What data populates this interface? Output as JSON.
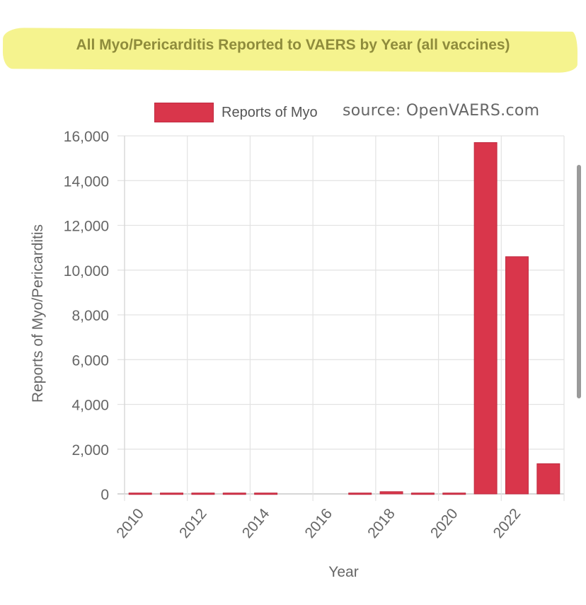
{
  "header": {
    "title": "All Myo/Pericarditis Reported to VAERS by Year (all vaccines)",
    "source": "source: OpenVAERS.com"
  },
  "colors": {
    "bar": "#d9364b",
    "highlight": "#f3f17a",
    "title_text": "#8f8c3c"
  },
  "chart_data": {
    "type": "bar",
    "title": "All Myo/Pericarditis Reported to VAERS by Year (all vaccines)",
    "xlabel": "Year",
    "ylabel": "Reports of Myo/Pericarditis",
    "legend": {
      "label": "Reports of Myo",
      "placement": "top"
    },
    "categories": [
      "2010",
      "2011",
      "2012",
      "2013",
      "2014",
      "2015",
      "2016",
      "2017",
      "2018",
      "2019",
      "2020",
      "2021",
      "2022",
      "2023"
    ],
    "x_tick_labels": [
      "2010",
      "2012",
      "2014",
      "2016",
      "2018",
      "2020",
      "2022"
    ],
    "series": [
      {
        "name": "Reports of Myo",
        "values": [
          40,
          40,
          40,
          40,
          40,
          0,
          0,
          40,
          100,
          40,
          40,
          15700,
          10600,
          1350
        ]
      }
    ],
    "y_ticks": [
      0,
      2000,
      4000,
      6000,
      8000,
      10000,
      12000,
      14000,
      16000
    ],
    "y_tick_labels": [
      "0",
      "2,000",
      "4,000",
      "6,000",
      "8,000",
      "10,000",
      "12,000",
      "14,000",
      "16,000"
    ],
    "ylim": [
      0,
      16000
    ],
    "grid": true
  }
}
